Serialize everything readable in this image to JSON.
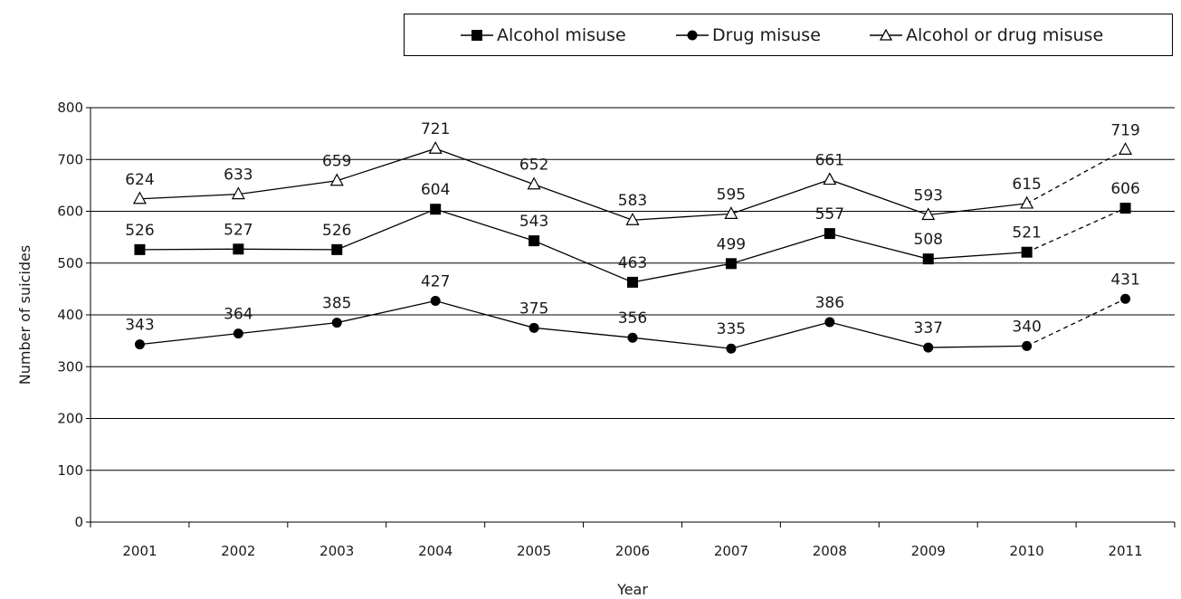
{
  "chart_data": {
    "type": "line",
    "title": "",
    "xlabel": "Year",
    "ylabel": "Number of suicides",
    "ylim": [
      0,
      800
    ],
    "yticks": [
      0,
      100,
      200,
      300,
      400,
      500,
      600,
      700,
      800
    ],
    "y_tick_labels": [
      "0",
      "100",
      "200",
      "300",
      "400",
      "500",
      "600",
      "700",
      "800"
    ],
    "grid": "horizontal",
    "legend_position": "top-right",
    "categories": [
      "2001",
      "2002",
      "2003",
      "2004",
      "2005",
      "2006",
      "2007",
      "2008",
      "2009",
      "2010",
      "2011"
    ],
    "last_segment_style": "dashed",
    "series": [
      {
        "name": "Alcohol misuse",
        "marker": "filled-square",
        "values": [
          526,
          527,
          526,
          604,
          543,
          463,
          499,
          557,
          508,
          521,
          606
        ]
      },
      {
        "name": "Drug misuse",
        "marker": "filled-circle",
        "values": [
          343,
          364,
          385,
          427,
          375,
          356,
          335,
          386,
          337,
          340,
          431
        ]
      },
      {
        "name": "Alcohol or drug misuse",
        "marker": "open-triangle",
        "values": [
          624,
          633,
          659,
          721,
          652,
          583,
          595,
          661,
          593,
          615,
          719
        ]
      }
    ]
  },
  "legend": {
    "items": [
      {
        "label": "Alcohol misuse",
        "icon": "filled-square-marker-icon"
      },
      {
        "label": "Drug misuse",
        "icon": "filled-circle-marker-icon"
      },
      {
        "label": "Alcohol or drug misuse",
        "icon": "open-triangle-marker-icon"
      }
    ]
  },
  "colors": {
    "line": "#000000",
    "grid": "#000000",
    "text": "#1a1a1a",
    "background": "#ffffff"
  }
}
